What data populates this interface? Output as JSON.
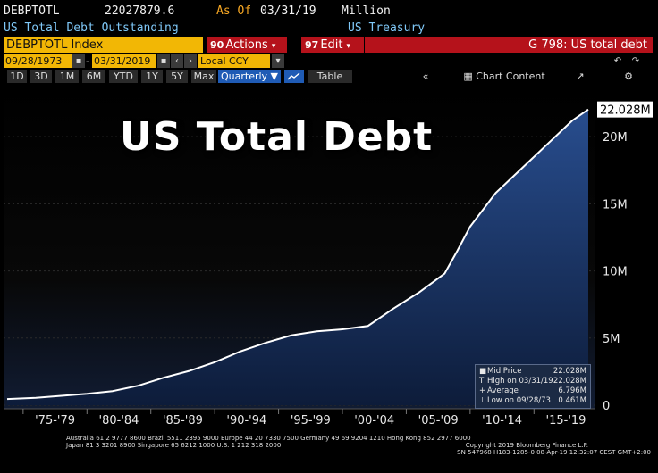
{
  "header": {
    "ticker": "DEBPTOTL",
    "value": "22027879.6",
    "as_of_label": "As Of",
    "as_of_date": "03/31/19",
    "units": "Million",
    "description": "US Total Debt Outstanding",
    "source": "US Treasury"
  },
  "command_bar": {
    "security": "DEBPTOTL Index",
    "actions_num": "90",
    "actions_label": "Actions",
    "edit_num": "97",
    "edit_label": "Edit",
    "caret": "▾",
    "page_title": "G 798: US total debt"
  },
  "range": {
    "start_date": "09/28/1973",
    "end_date": "03/31/2019",
    "currency": "Local CCY",
    "cal_icon": "calendar-icon",
    "prev_icon": "‹",
    "next_icon": "›",
    "undo_icon": "↶",
    "redo_icon": "↷"
  },
  "toolbar": {
    "periods": [
      "1D",
      "3D",
      "1M",
      "6M",
      "YTD",
      "1Y",
      "5Y",
      "Max"
    ],
    "frequency": "Quarterly ▼",
    "chart_type_icon": "line-chart-icon",
    "table_label": "Table",
    "collapse_icon": "«",
    "chart_content_label": "Chart Content",
    "edit_icon": "↗",
    "gear_icon": "⚙"
  },
  "title_overlay": "US Total Debt",
  "chart_data": {
    "type": "area",
    "x_ticks": [
      "'75-'79",
      "'80-'84",
      "'85-'89",
      "'90-'94",
      "'95-'99",
      "'00-'04",
      "'05-'09",
      "'10-'14",
      "'15-'19"
    ],
    "y_ticks": [
      "0",
      "5M",
      "10M",
      "15M",
      "20M"
    ],
    "y_tick_values": [
      0,
      5,
      10,
      15,
      20
    ],
    "ylim": [
      0,
      23.4
    ],
    "xlim": [
      1973.75,
      2019.25
    ],
    "last_value_label": "22.028M",
    "series": [
      {
        "x": [
          1973.75,
          1976,
          1978,
          1980,
          1982,
          1984,
          1986,
          1988,
          1990,
          1992,
          1994,
          1996,
          1998,
          2000,
          2002,
          2004,
          2006,
          2008,
          2009,
          2010,
          2012,
          2014,
          2016,
          2018,
          2019.25
        ],
        "values": [
          0.461,
          0.55,
          0.7,
          0.85,
          1.05,
          1.45,
          2.05,
          2.55,
          3.2,
          4.0,
          4.65,
          5.2,
          5.5,
          5.65,
          5.9,
          7.2,
          8.4,
          9.8,
          11.5,
          13.3,
          15.8,
          17.6,
          19.4,
          21.2,
          22.028
        ]
      }
    ],
    "colors": {
      "line": "#ffffff",
      "fill_top": "#1f3f78",
      "fill_bottom": "#0d1c3a",
      "background": "#000000"
    }
  },
  "legend": {
    "rows": [
      {
        "symbol": "■",
        "label": "Mid Price",
        "value": "22.028M"
      },
      {
        "symbol": "T",
        "label": "High on 03/31/19",
        "value": "22.028M"
      },
      {
        "symbol": "+",
        "label": "Average",
        "value": "6.796M"
      },
      {
        "symbol": "⊥",
        "label": "Low on 09/28/73",
        "value": "0.461M"
      }
    ]
  },
  "footer": {
    "line1": "Australia 61 2 9777 8600 Brazil 5511 2395 9000 Europe 44 20 7330 7500 Germany 49 69 9204 1210 Hong Kong 852 2977 6000",
    "line2": "Japan 81 3 3201 8900        Singapore 65 6212 1000        U.S. 1 212 318 2000",
    "line3": "Copyright 2019 Bloomberg Finance L.P.",
    "line4": "SN 547968 H183-1285-0 08-Apr-19 12:32:07 CEST GMT+2:00"
  }
}
